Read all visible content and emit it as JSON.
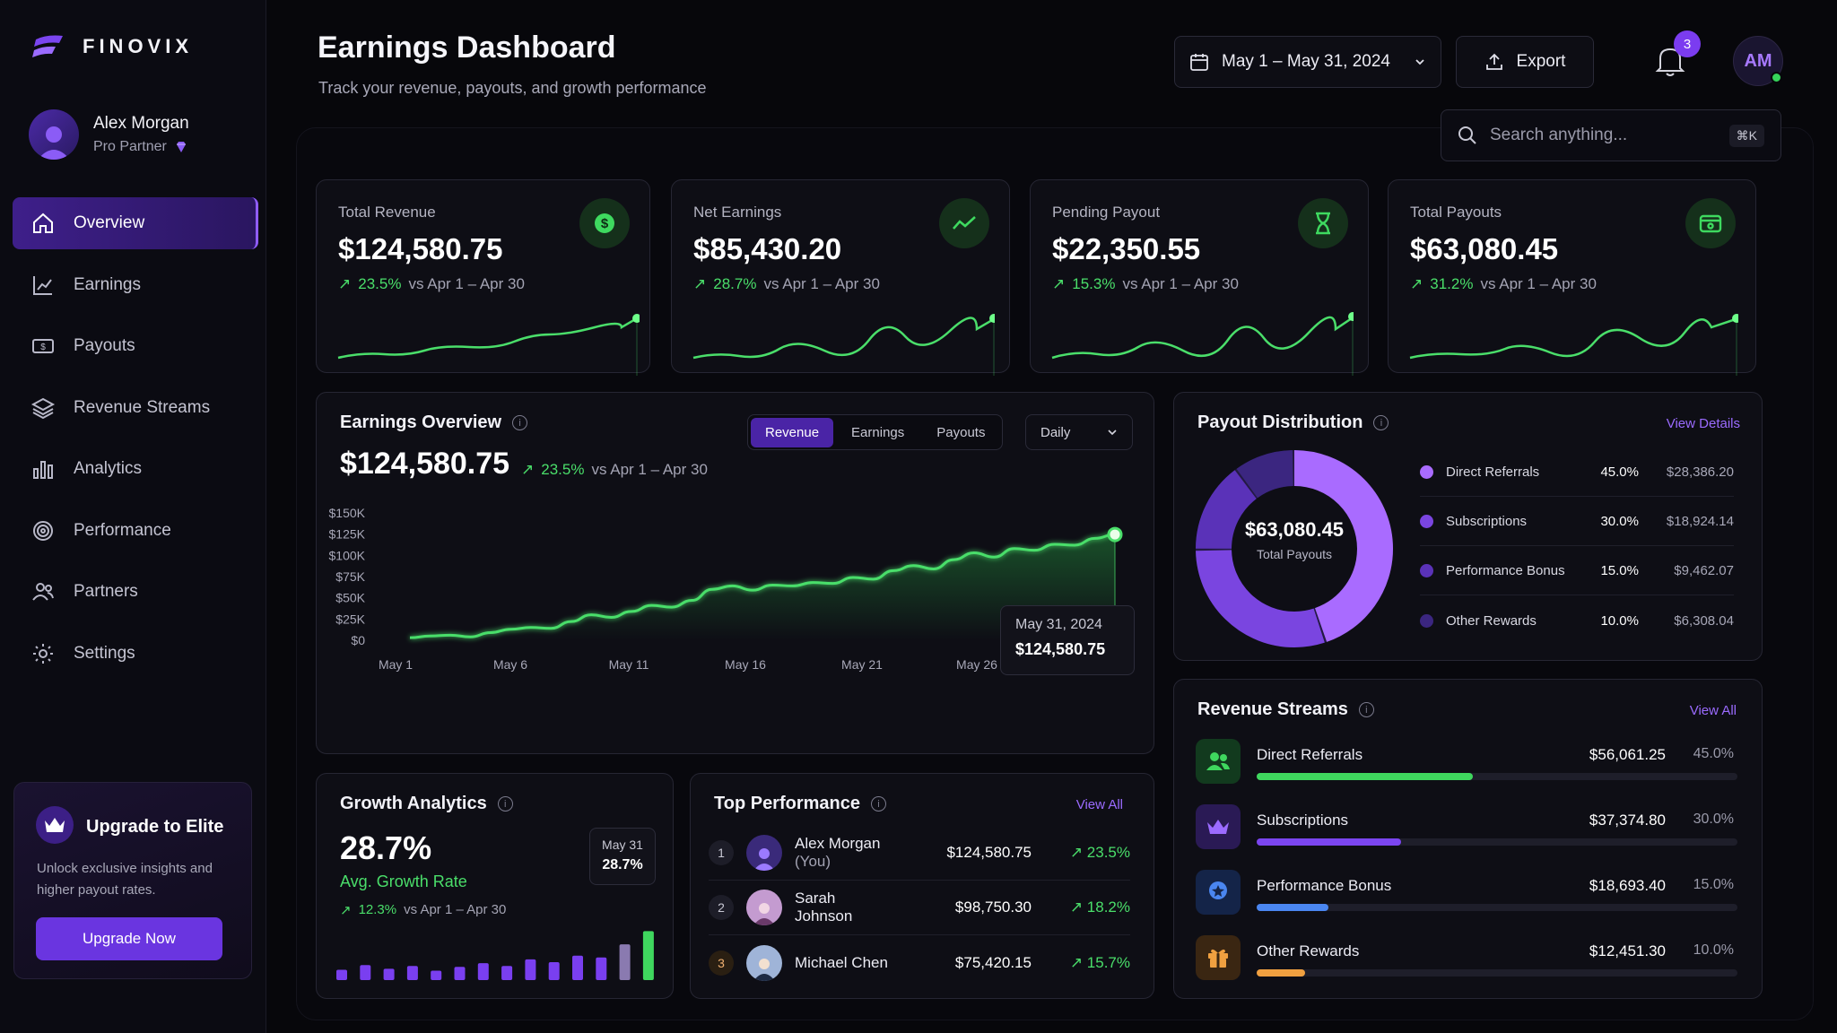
{
  "brand": {
    "name": "FINOVIX"
  },
  "user": {
    "name": "Alex Morgan",
    "role": "Pro Partner",
    "initials": "AM"
  },
  "nav": [
    {
      "label": "Overview",
      "icon": "home-icon",
      "active": true
    },
    {
      "label": "Earnings",
      "icon": "line-chart-icon"
    },
    {
      "label": "Payouts",
      "icon": "cash-icon"
    },
    {
      "label": "Revenue Streams",
      "icon": "layers-icon"
    },
    {
      "label": "Analytics",
      "icon": "bar-chart-icon"
    },
    {
      "label": "Performance",
      "icon": "target-icon"
    },
    {
      "label": "Partners",
      "icon": "users-icon"
    },
    {
      "label": "Settings",
      "icon": "gear-icon"
    }
  ],
  "upgrade": {
    "title": "Upgrade to Elite",
    "description": "Unlock exclusive insights and higher payout rates.",
    "button": "Upgrade Now"
  },
  "header": {
    "title": "Earnings Dashboard",
    "subtitle": "Track your revenue, payouts, and growth performance",
    "date_range": "May 1 – May 31, 2024",
    "export_label": "Export",
    "notifications": "3",
    "search_placeholder": "Search anything...",
    "search_shortcut": "⌘K"
  },
  "stats": [
    {
      "label": "Total Revenue",
      "value": "$124,580.75",
      "change": "23.5%",
      "compare": "vs Apr 1 – Apr 30",
      "icon": "dollar-icon"
    },
    {
      "label": "Net Earnings",
      "value": "$85,430.20",
      "change": "28.7%",
      "compare": "vs Apr 1 – Apr 30",
      "icon": "trend-icon"
    },
    {
      "label": "Pending Payout",
      "value": "$22,350.55",
      "change": "15.3%",
      "compare": "vs Apr 1 – Apr 30",
      "icon": "hourglass-icon"
    },
    {
      "label": "Total Payouts",
      "value": "$63,080.45",
      "change": "31.2%",
      "compare": "vs Apr 1 – Apr 30",
      "icon": "wallet-icon"
    }
  ],
  "overview": {
    "title": "Earnings Overview",
    "value": "$124,580.75",
    "change": "23.5%",
    "compare": "vs Apr 1 – Apr 30",
    "tabs": [
      "Revenue",
      "Earnings",
      "Payouts"
    ],
    "active_tab": "Revenue",
    "period": "Daily",
    "tooltip_date": "May 31, 2024",
    "tooltip_value": "$124,580.75"
  },
  "chart_data": {
    "type": "area",
    "x_ticks": [
      "May 1",
      "May 6",
      "May 11",
      "May 16",
      "May 21",
      "May 26",
      "May 31"
    ],
    "y_ticks": [
      "$0",
      "$25K",
      "$50K",
      "$75K",
      "$100K",
      "$125K",
      "$150K"
    ],
    "ylim": [
      0,
      150000
    ],
    "series": [
      {
        "values": [
          3000,
          5000,
          6000,
          4000,
          9000,
          13000,
          15000,
          14000,
          22000,
          30000,
          27000,
          34000,
          41000,
          39000,
          47000,
          60000,
          64000,
          59000,
          65000,
          64000,
          68000,
          67000,
          74000,
          72000,
          82000,
          88000,
          84000,
          95000,
          103000,
          98000,
          108000,
          106000,
          113000,
          112000,
          120000,
          124580
        ]
      }
    ]
  },
  "payout_distribution": {
    "title": "Payout Distribution",
    "link": "View Details",
    "total": "$63,080.45",
    "total_label": "Total Payouts",
    "items": [
      {
        "name": "Direct Referrals",
        "percent": "45.0%",
        "amount": "$28,386.20",
        "share": 45,
        "color": "#a96bff"
      },
      {
        "name": "Subscriptions",
        "percent": "30.0%",
        "amount": "$18,924.14",
        "share": 30,
        "color": "#7a45e0"
      },
      {
        "name": "Performance Bonus",
        "percent": "15.0%",
        "amount": "$9,462.07",
        "share": 15,
        "color": "#5a32b8"
      },
      {
        "name": "Other Rewards",
        "percent": "10.0%",
        "amount": "$6,308.04",
        "share": 10,
        "color": "#3b2680"
      }
    ]
  },
  "revenue_streams": {
    "title": "Revenue Streams",
    "link": "View All",
    "items": [
      {
        "name": "Direct Referrals",
        "amount": "$56,061.25",
        "percent": "45.0%",
        "share": 45,
        "color": "#3fd75e",
        "icon": "users-icon",
        "icon_bg": "#123a1e"
      },
      {
        "name": "Subscriptions",
        "amount": "$37,374.80",
        "percent": "30.0%",
        "share": 30,
        "color": "#7b45f0",
        "icon": "crown-icon",
        "icon_bg": "#2a1a55"
      },
      {
        "name": "Performance Bonus",
        "amount": "$18,693.40",
        "percent": "15.0%",
        "share": 15,
        "color": "#4a86f0",
        "icon": "badge-icon",
        "icon_bg": "#142448"
      },
      {
        "name": "Other Rewards",
        "amount": "$12,451.30",
        "percent": "10.0%",
        "share": 10,
        "color": "#f0a040",
        "icon": "gift-icon",
        "icon_bg": "#3a2612"
      }
    ]
  },
  "growth": {
    "title": "Growth Analytics",
    "value": "28.7%",
    "label": "Avg. Growth Rate",
    "change": "12.3%",
    "compare": "vs Apr 1 – Apr 30",
    "tooltip_date": "May 31",
    "tooltip_value": "28.7%",
    "bars": [
      11,
      16,
      12,
      15,
      10,
      14,
      18,
      15,
      22,
      19,
      26,
      24,
      38,
      52,
      80
    ]
  },
  "top_performance": {
    "title": "Top Performance",
    "link": "View All",
    "rows": [
      {
        "rank": "1",
        "name": "Alex Morgan",
        "tag": "(You)",
        "amount": "$124,580.75",
        "change": "23.5%"
      },
      {
        "rank": "2",
        "name": "Sarah Johnson",
        "tag": "",
        "amount": "$98,750.30",
        "change": "18.2%"
      },
      {
        "rank": "3",
        "name": "Michael Chen",
        "tag": "",
        "amount": "$75,420.15",
        "change": "15.7%"
      }
    ]
  }
}
